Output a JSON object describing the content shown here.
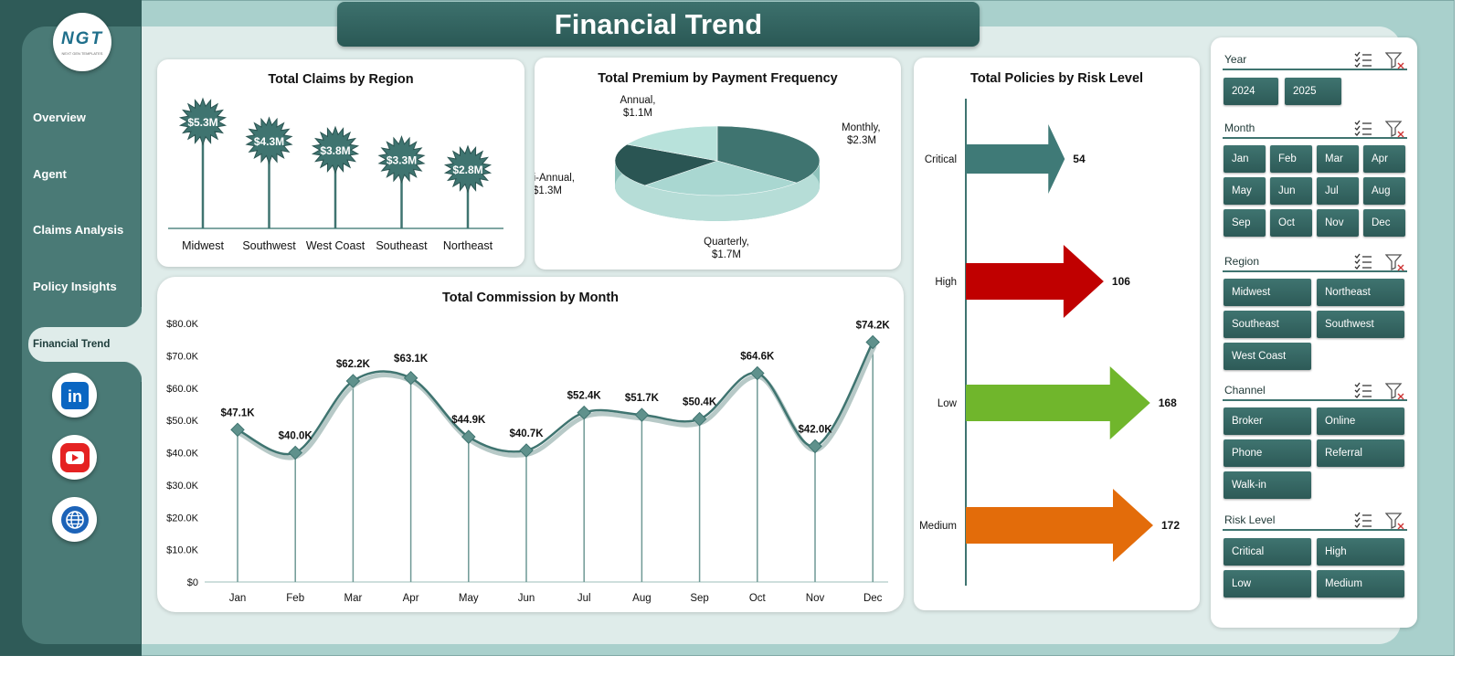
{
  "header": {
    "title": "Financial Trend"
  },
  "sidebar": {
    "logo": {
      "text": "NGT",
      "subtext": "NEXT GEN TEMPLATES"
    },
    "items": [
      {
        "label": "Overview"
      },
      {
        "label": "Agent"
      },
      {
        "label": "Claims Analysis"
      },
      {
        "label": "Policy Insights"
      },
      {
        "label": "Financial Trend"
      }
    ],
    "social": [
      {
        "icon": "linkedin-icon",
        "text": "in"
      },
      {
        "icon": "youtube-icon"
      },
      {
        "icon": "globe-icon"
      }
    ]
  },
  "charts": {
    "claims_title": "Total Claims by Region",
    "premium_title": "Total Premium by Payment Frequency",
    "policies_title": "Total Policies by Risk Level",
    "commission_title": "Total Commission by Month"
  },
  "chart_data": [
    {
      "type": "bar",
      "title": "Total Claims by Region",
      "categories": [
        "Midwest",
        "Southwest",
        "West Coast",
        "Southeast",
        "Northeast"
      ],
      "values": [
        5.3,
        4.3,
        3.8,
        3.3,
        2.8
      ],
      "labels": [
        "$5.3M",
        "$4.3M",
        "$3.8M",
        "$3.3M",
        "$2.8M"
      ]
    },
    {
      "type": "pie",
      "title": "Total Premium by Payment Frequency",
      "categories": [
        "Monthly",
        "Quarterly",
        "Semi-Annual",
        "Annual"
      ],
      "values": [
        2.3,
        1.7,
        1.3,
        1.1
      ],
      "labels": [
        "$2.3M",
        "$1.7M",
        "$1.3M",
        "$1.1M"
      ],
      "colors": [
        "#3f7470",
        "#a9d7d1",
        "#2a5553",
        "#b8e2db"
      ]
    },
    {
      "type": "bar",
      "title": "Total Policies by Risk Level",
      "categories": [
        "Critical",
        "High",
        "Low",
        "Medium"
      ],
      "values": [
        54,
        106,
        168,
        172
      ],
      "colors": [
        "#3f7a77",
        "#c00000",
        "#70b62c",
        "#e36c0a"
      ]
    },
    {
      "type": "line",
      "title": "Total Commission by Month",
      "categories": [
        "Jan",
        "Feb",
        "Mar",
        "Apr",
        "May",
        "Jun",
        "Jul",
        "Aug",
        "Sep",
        "Oct",
        "Nov",
        "Dec"
      ],
      "values": [
        47.1,
        40.0,
        62.2,
        63.1,
        44.9,
        40.7,
        52.4,
        51.7,
        50.4,
        64.6,
        42.0,
        74.2
      ],
      "labels": [
        "$47.1K",
        "$40.0K",
        "$62.2K",
        "$63.1K",
        "$44.9K",
        "$40.7K",
        "$52.4K",
        "$51.7K",
        "$50.4K",
        "$64.6K",
        "$42.0K",
        "$74.2K"
      ],
      "ylim": [
        0,
        80
      ],
      "yticks": [
        "$0",
        "$10.0K",
        "$20.0K",
        "$30.0K",
        "$40.0K",
        "$50.0K",
        "$60.0K",
        "$70.0K",
        "$80.0K"
      ]
    }
  ],
  "filters": {
    "year": {
      "title": "Year",
      "options": [
        "2024",
        "2025"
      ]
    },
    "month": {
      "title": "Month",
      "options": [
        "Jan",
        "Feb",
        "Mar",
        "Apr",
        "May",
        "Jun",
        "Jul",
        "Aug",
        "Sep",
        "Oct",
        "Nov",
        "Dec"
      ]
    },
    "region": {
      "title": "Region",
      "options": [
        "Midwest",
        "Northeast",
        "Southeast",
        "Southwest",
        "West Coast"
      ]
    },
    "channel": {
      "title": "Channel",
      "options": [
        "Broker",
        "Online",
        "Phone",
        "Referral",
        "Walk-in"
      ]
    },
    "risk": {
      "title": "Risk Level",
      "options": [
        "Critical",
        "High",
        "Low",
        "Medium"
      ]
    }
  }
}
